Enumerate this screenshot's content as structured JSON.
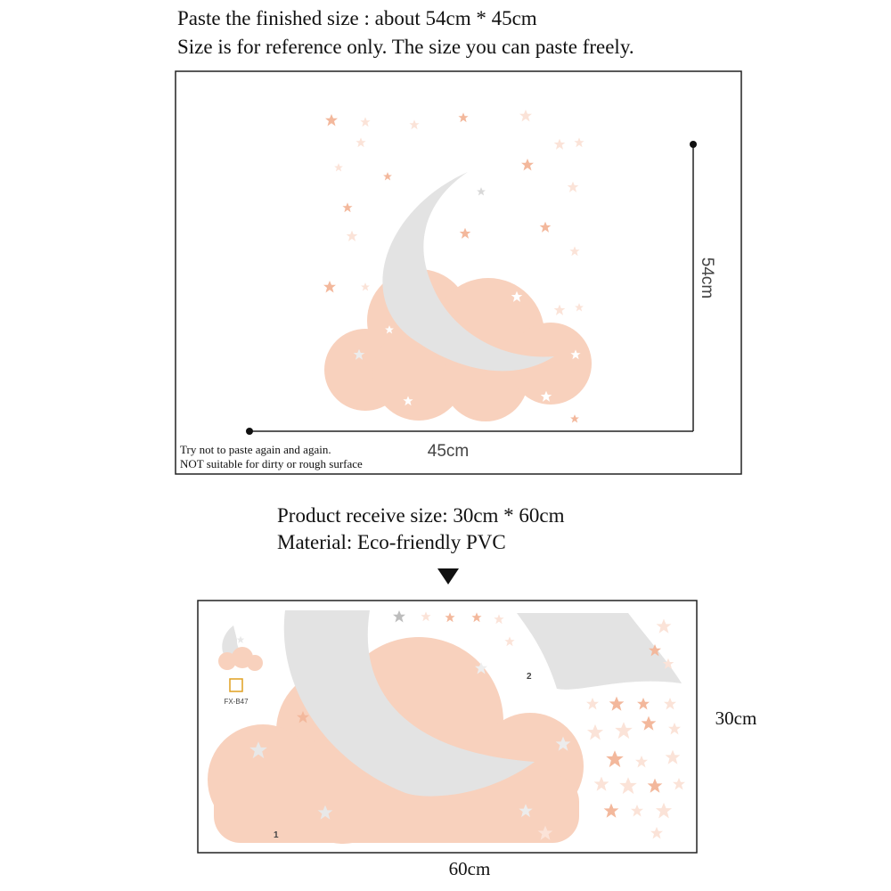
{
  "header": {
    "lines": [
      "Paste the finished size : about 54cm * 45cm",
      "Size is for reference only. The size you can paste freely."
    ]
  },
  "preview": {
    "height_label": "54cm",
    "width_label": "45cm",
    "notes": [
      "Try not to paste again and again.",
      "NOT suitable for dirty or rough surface"
    ]
  },
  "product": {
    "lines": [
      "Product receive size: 30cm * 60cm",
      "Material: Eco-friendly PVC"
    ]
  },
  "sheet": {
    "code": "FX-B47",
    "part_labels": [
      "1",
      "2"
    ],
    "height_label": "30cm",
    "width_label": "60cm"
  }
}
